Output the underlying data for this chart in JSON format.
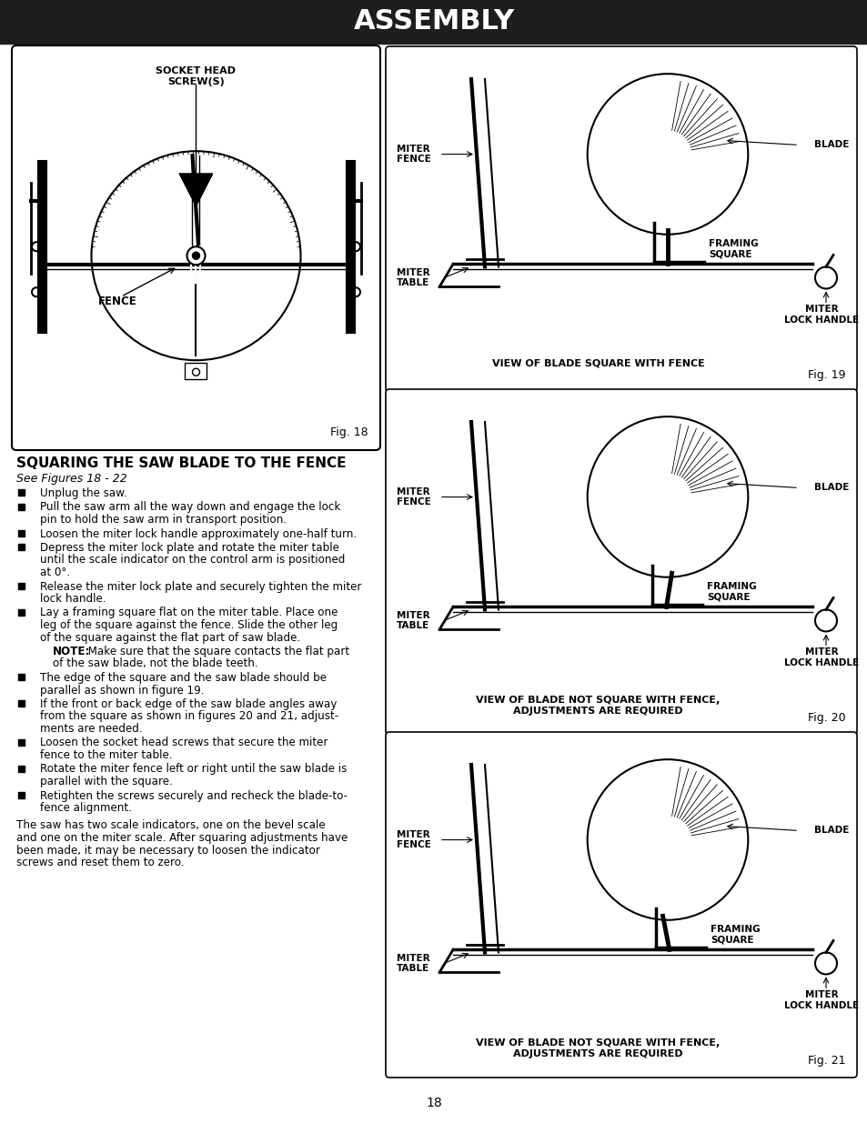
{
  "title": "ASSEMBLY",
  "title_bg": "#1e1e1e",
  "title_color": "#ffffff",
  "page_bg": "#ffffff",
  "page_number": "18",
  "section_title": "SQUARING THE SAW BLADE TO THE FENCE",
  "section_subtitle": "See Figures 18 - 22",
  "fig18_label": "Fig. 18",
  "fig19_label": "Fig. 19",
  "fig20_label": "Fig. 20",
  "fig21_label": "Fig. 21",
  "fig19_caption": "VIEW OF BLADE SQUARE WITH FENCE",
  "fig20_caption": "VIEW OF BLADE NOT SQUARE WITH FENCE,\nADJUSTMENTS ARE REQUIRED",
  "fig21_caption": "VIEW OF BLADE NOT SQUARE WITH FENCE,\nADJUSTMENTS ARE REQUIRED",
  "bullet_items": [
    [
      true,
      "Unplug the saw."
    ],
    [
      true,
      "Pull the saw arm all the way down and engage the lock\npin to hold the saw arm in transport position."
    ],
    [
      true,
      "Loosen the miter lock handle approximately one-half turn."
    ],
    [
      true,
      "Depress the miter lock plate and rotate the miter table\nuntil the scale indicator on the control arm is positioned\nat 0°."
    ],
    [
      true,
      "Release the miter lock plate and securely tighten the miter\nlock handle."
    ],
    [
      true,
      "Lay a framing square flat on the miter table. Place one\nleg of the square against the fence. Slide the other leg\nof the square against the flat part of saw blade."
    ],
    [
      false,
      "NOTE: Make sure that the square contacts the flat part\nof the saw blade, not the blade teeth."
    ],
    [
      true,
      "The edge of the square and the saw blade should be\nparallel as shown in figure 19."
    ],
    [
      true,
      "If the front or back edge of the saw blade angles away\nfrom the square as shown in figures 20 and 21, adjust-\nments are needed."
    ],
    [
      true,
      "Loosen the socket head screws that secure the miter\nfence to the miter table."
    ],
    [
      true,
      "Rotate the miter fence left or right until the saw blade is\nparallel with the square."
    ],
    [
      true,
      "Retighten the screws securely and recheck the blade-to-\nfence alignment."
    ]
  ],
  "closing_text": "The saw has two scale indicators, one on the bevel scale\nand one on the miter scale. After squaring adjustments have\nbeen made, it may be necessary to loosen the indicator\nscrews and reset them to zero."
}
